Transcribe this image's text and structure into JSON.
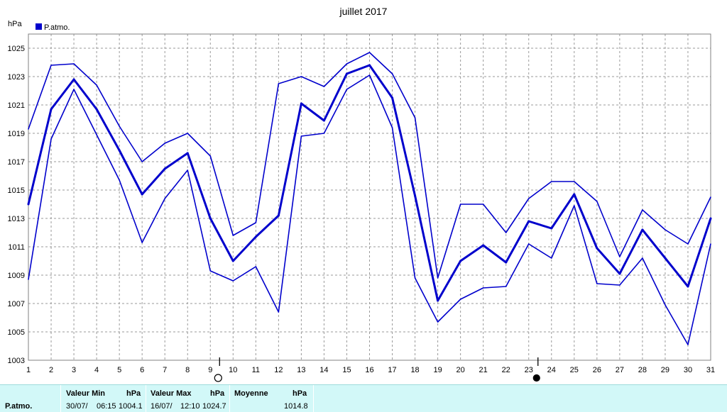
{
  "chart_data": {
    "type": "line",
    "title": "juillet 2017",
    "ylabel": "hPa",
    "xlabel": "",
    "categories": [
      "1",
      "2",
      "3",
      "4",
      "5",
      "6",
      "7",
      "8",
      "9",
      "10",
      "11",
      "12",
      "13",
      "14",
      "15",
      "16",
      "17",
      "18",
      "19",
      "20",
      "21",
      "22",
      "23",
      "24",
      "25",
      "26",
      "27",
      "28",
      "29",
      "30",
      "31"
    ],
    "ylim": [
      1003,
      1026
    ],
    "yticks": [
      1003,
      1005,
      1007,
      1009,
      1011,
      1013,
      1015,
      1017,
      1019,
      1021,
      1023,
      1025
    ],
    "grid": true,
    "legend": "top-left",
    "legend_entries": [
      "P.atmo."
    ],
    "moon_phases": [
      {
        "day": 9,
        "phase": "full-moon-icon"
      },
      {
        "day": 23,
        "phase": "new-moon-icon"
      }
    ],
    "series": [
      {
        "name": "P.atmo.",
        "kind": "max",
        "color": "#0000cc",
        "values": [
          1019.3,
          1023.8,
          1023.9,
          1022.4,
          1019.5,
          1017.0,
          1018.3,
          1019.0,
          1017.4,
          1011.8,
          1012.7,
          1022.5,
          1023.0,
          1022.3,
          1023.9,
          1024.7,
          1023.2,
          1020.1,
          1008.8,
          1014.0,
          1014.0,
          1012.0,
          1014.4,
          1015.6,
          1015.6,
          1014.2,
          1010.3,
          1013.6,
          1012.2,
          1011.2,
          1014.5
        ]
      },
      {
        "name": "P.atmo.",
        "kind": "mean",
        "color": "#0000cc",
        "values": [
          1014.0,
          1020.7,
          1022.8,
          1020.7,
          1017.8,
          1014.7,
          1016.5,
          1017.6,
          1013.0,
          1010.0,
          1011.7,
          1013.2,
          1021.1,
          1019.9,
          1023.2,
          1023.8,
          1021.5,
          1014.6,
          1007.2,
          1010.0,
          1011.1,
          1009.9,
          1012.8,
          1012.3,
          1014.7,
          1010.9,
          1009.1,
          1012.2,
          1010.2,
          1008.2,
          1013.0
        ]
      },
      {
        "name": "P.atmo.",
        "kind": "min",
        "color": "#0000cc",
        "values": [
          1008.7,
          1018.6,
          1022.1,
          1018.9,
          1015.7,
          1011.3,
          1014.4,
          1016.4,
          1009.3,
          1008.6,
          1009.6,
          1006.4,
          1018.8,
          1019.0,
          1022.1,
          1023.1,
          1019.4,
          1008.8,
          1005.7,
          1007.3,
          1008.1,
          1008.2,
          1011.2,
          1010.2,
          1013.9,
          1008.4,
          1008.3,
          1010.2,
          1006.9,
          1004.1,
          1011.2
        ]
      }
    ]
  },
  "stats": {
    "param_label": "P.atmo.",
    "min": {
      "header": "Valeur Min",
      "unit": "hPa",
      "date": "30/07/",
      "time": "06:15",
      "value": "1004.1"
    },
    "max": {
      "header": "Valeur Max",
      "unit": "hPa",
      "date": "16/07/",
      "time": "12:10",
      "value": "1024.7"
    },
    "avg": {
      "header": "Moyenne",
      "unit": "hPa",
      "value": "1014.8"
    }
  },
  "colors": {
    "line": "#0000cc",
    "stats_bg": "#d2f8f8",
    "grid": "#9a9a9a"
  }
}
